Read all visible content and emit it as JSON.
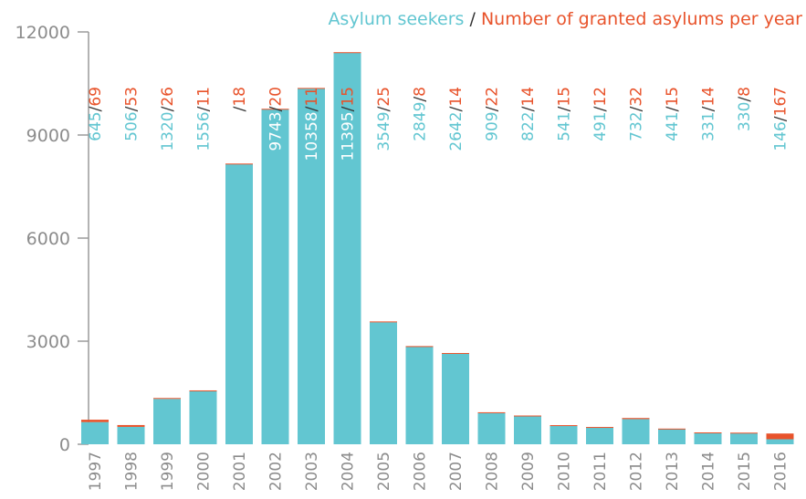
{
  "chart_data": {
    "type": "bar",
    "stacked": true,
    "legend": {
      "placement": "top-right",
      "series1": "Asylum seekers",
      "separator": " / ",
      "series2": "Number of granted asylums per year"
    },
    "categories": [
      "1997",
      "1998",
      "1999",
      "2000",
      "2001",
      "2002",
      "2003",
      "2004",
      "2005",
      "2006",
      "2007",
      "2008",
      "2009",
      "2010",
      "2011",
      "2012",
      "2013",
      "2014",
      "2015",
      "2016"
    ],
    "series": [
      {
        "name": "Asylum seekers",
        "color": "#62c6d1",
        "values": [
          645,
          506,
          1320,
          1556,
          8151,
          9743,
          10358,
          11395,
          3549,
          2849,
          2642,
          909,
          822,
          541,
          491,
          732,
          441,
          331,
          330,
          146
        ]
      },
      {
        "name": "Number of granted asylums per year",
        "color": "#e8532b",
        "values": [
          69,
          53,
          26,
          11,
          18,
          20,
          11,
          15,
          25,
          8,
          14,
          22,
          14,
          15,
          12,
          32,
          15,
          14,
          8,
          167
        ]
      }
    ],
    "yticks": [
      0,
      3000,
      6000,
      9000,
      12000
    ],
    "ylim": [
      0,
      12000
    ],
    "separator_color": "#333333",
    "grid": false
  }
}
